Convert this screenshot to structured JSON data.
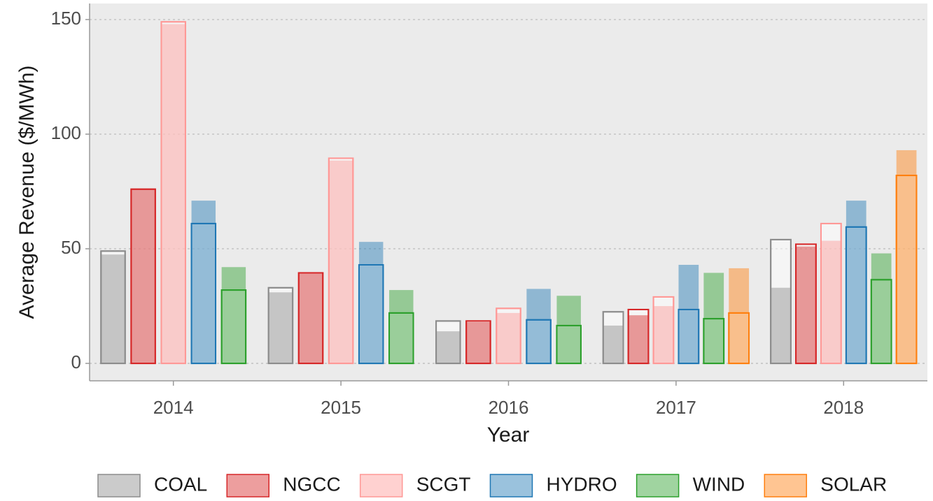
{
  "chart_data": {
    "type": "bar",
    "x_label": "Year",
    "y_label": "Average Revenue ($/MWh)",
    "categories": [
      "2014",
      "2015",
      "2016",
      "2017",
      "2018"
    ],
    "ylim": [
      -7.6,
      157
    ],
    "yticks": [
      0,
      50,
      100,
      150
    ],
    "grid": true,
    "legend": "bottom",
    "series": [
      {
        "name": "COAL",
        "color": "#8c8c8c",
        "values": [
          47.5,
          31,
          14,
          16.5,
          33
        ],
        "outline_values": [
          49,
          33,
          18.5,
          22.5,
          54
        ]
      },
      {
        "name": "NGCC",
        "color": "#d62728",
        "values": [
          76,
          39.5,
          18,
          21,
          51
        ],
        "outline_values": [
          76,
          39.5,
          18.5,
          23.5,
          52
        ]
      },
      {
        "name": "SCGT",
        "color": "#ff9896",
        "values": [
          148,
          88.5,
          22,
          25,
          53.5
        ],
        "outline_values": [
          149,
          89.5,
          24,
          29,
          61
        ]
      },
      {
        "name": "HYDRO",
        "color": "#1f77b4",
        "values": [
          71,
          53,
          32.5,
          43,
          71
        ],
        "outline_values": [
          61,
          43,
          19,
          23.5,
          59.5
        ]
      },
      {
        "name": "WIND",
        "color": "#2ca02c",
        "values": [
          42,
          32,
          29.5,
          39.5,
          48
        ],
        "outline_values": [
          32,
          22,
          16.5,
          19.5,
          36.5
        ]
      },
      {
        "name": "SOLAR",
        "color": "#ff7f0e",
        "values": [
          null,
          null,
          null,
          41.5,
          93
        ],
        "outline_values": [
          null,
          null,
          null,
          22,
          82
        ]
      }
    ]
  }
}
